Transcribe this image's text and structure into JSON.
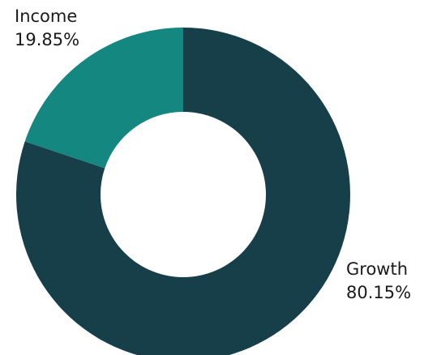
{
  "chart_data": {
    "type": "pie",
    "variant": "donut",
    "title": "",
    "slices": [
      {
        "label": "Growth",
        "value": 80.15,
        "value_text": "80.15%",
        "color": "#163f4a"
      },
      {
        "label": "Income",
        "value": 19.85,
        "value_text": "19.85%",
        "color": "#138780"
      }
    ],
    "legend": "none"
  }
}
